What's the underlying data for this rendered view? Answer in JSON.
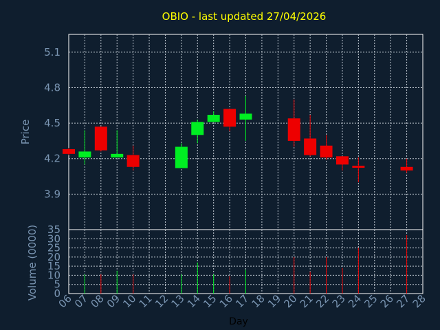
{
  "title": "OBIO - last updated 27/04/2026",
  "colors": {
    "background": "#0f1e2e",
    "title": "#ffff00",
    "axis_text": "#7a95b2",
    "grid": "#bfc7d0",
    "frame": "#ffffff",
    "up": "#00ee22",
    "down": "#ee0000"
  },
  "chart_data": [
    {
      "type": "candlestick",
      "ylabel": "Price",
      "ylim": [
        3.6,
        5.25
      ],
      "yticks": [
        3.9,
        4.2,
        4.5,
        4.8,
        5.1
      ],
      "grid": true,
      "candles": [
        {
          "day": 6,
          "open": 4.28,
          "high": 4.29,
          "low": 4.23,
          "close": 4.24
        },
        {
          "day": 7,
          "open": 4.21,
          "high": 4.44,
          "low": 4.15,
          "close": 4.26
        },
        {
          "day": 8,
          "open": 4.47,
          "high": 4.47,
          "low": 4.26,
          "close": 4.27
        },
        {
          "day": 9,
          "open": 4.21,
          "high": 4.44,
          "low": 4.21,
          "close": 4.24
        },
        {
          "day": 10,
          "open": 4.23,
          "high": 4.31,
          "low": 4.1,
          "close": 4.13
        },
        {
          "day": 13,
          "open": 4.12,
          "high": 4.33,
          "low": 4.12,
          "close": 4.3
        },
        {
          "day": 14,
          "open": 4.4,
          "high": 4.53,
          "low": 4.33,
          "close": 4.51
        },
        {
          "day": 15,
          "open": 4.51,
          "high": 4.6,
          "low": 4.51,
          "close": 4.57
        },
        {
          "day": 16,
          "open": 4.62,
          "high": 4.62,
          "low": 4.43,
          "close": 4.47
        },
        {
          "day": 17,
          "open": 4.53,
          "high": 4.73,
          "low": 4.35,
          "close": 4.58
        },
        {
          "day": 20,
          "open": 4.54,
          "high": 4.7,
          "low": 4.3,
          "close": 4.35
        },
        {
          "day": 21,
          "open": 4.37,
          "high": 4.57,
          "low": 4.22,
          "close": 4.23
        },
        {
          "day": 22,
          "open": 4.31,
          "high": 4.4,
          "low": 4.19,
          "close": 4.21
        },
        {
          "day": 23,
          "open": 4.22,
          "high": 4.22,
          "low": 4.1,
          "close": 4.15
        },
        {
          "day": 24,
          "open": 4.14,
          "high": 4.21,
          "low": 4.0,
          "close": 4.13
        },
        {
          "day": 27,
          "open": 4.13,
          "high": 4.2,
          "low": 4.08,
          "close": 4.1
        }
      ]
    },
    {
      "type": "bar",
      "ylabel": "Volume (0000)",
      "xlabel": "Day",
      "ylim": [
        0,
        35
      ],
      "yticks": [
        0,
        5,
        10,
        15,
        20,
        25,
        30,
        35
      ],
      "grid": true,
      "x_ticks": [
        "06",
        "07",
        "08",
        "09",
        "10",
        "11",
        "12",
        "13",
        "14",
        "15",
        "16",
        "17",
        "18",
        "19",
        "20",
        "21",
        "22",
        "23",
        "24",
        "25",
        "26",
        "27",
        "28"
      ],
      "bars": [
        {
          "day": 7,
          "value": 10.5,
          "color": "up"
        },
        {
          "day": 8,
          "value": 10.5,
          "color": "down"
        },
        {
          "day": 9,
          "value": 12.5,
          "color": "up"
        },
        {
          "day": 10,
          "value": 10.5,
          "color": "down"
        },
        {
          "day": 13,
          "value": 10.5,
          "color": "up"
        },
        {
          "day": 14,
          "value": 17,
          "color": "up"
        },
        {
          "day": 15,
          "value": 10.5,
          "color": "up"
        },
        {
          "day": 16,
          "value": 9.5,
          "color": "down"
        },
        {
          "day": 17,
          "value": 13,
          "color": "up"
        },
        {
          "day": 20,
          "value": 20,
          "color": "down"
        },
        {
          "day": 21,
          "value": 12,
          "color": "down"
        },
        {
          "day": 22,
          "value": 20,
          "color": "down"
        },
        {
          "day": 23,
          "value": 14,
          "color": "down"
        },
        {
          "day": 24,
          "value": 25,
          "color": "down"
        },
        {
          "day": 27,
          "value": 32,
          "color": "down"
        }
      ]
    }
  ]
}
